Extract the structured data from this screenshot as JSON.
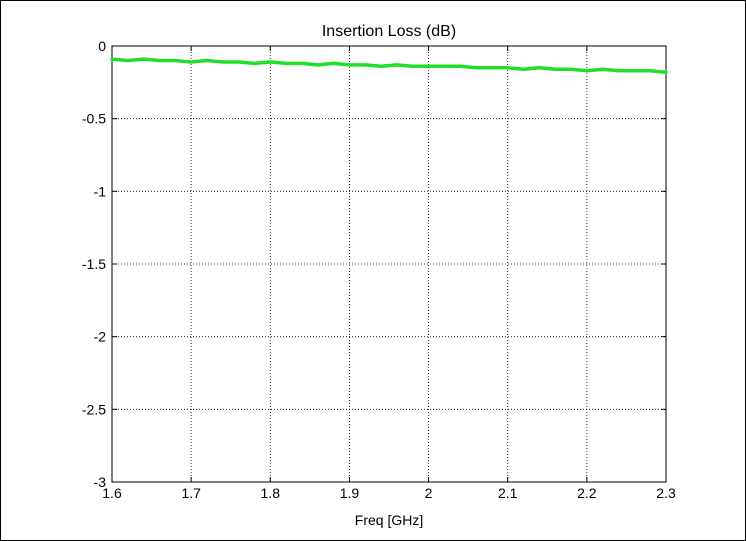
{
  "chart_data": {
    "type": "line",
    "title": "Insertion Loss (dB)",
    "xlabel": "Freq [GHz]",
    "ylabel": "",
    "xlim": [
      1.6,
      2.3
    ],
    "ylim": [
      -3,
      0
    ],
    "xticks": [
      "1.6",
      "1.7",
      "1.8",
      "1.9",
      "2",
      "2.1",
      "2.2",
      "2.3"
    ],
    "yticks": [
      "0",
      "-0.5",
      "-1",
      "-1.5",
      "-2",
      "-2.5",
      "-3"
    ],
    "grid": true,
    "series": [
      {
        "color": "#22e02a",
        "x": [
          1.6,
          1.62,
          1.64,
          1.66,
          1.68,
          1.7,
          1.72,
          1.74,
          1.76,
          1.78,
          1.8,
          1.82,
          1.84,
          1.86,
          1.88,
          1.9,
          1.92,
          1.94,
          1.96,
          1.98,
          2.0,
          2.02,
          2.04,
          2.06,
          2.08,
          2.1,
          2.12,
          2.14,
          2.16,
          2.18,
          2.2,
          2.22,
          2.24,
          2.26,
          2.28,
          2.3
        ],
        "y": [
          -0.09,
          -0.1,
          -0.09,
          -0.1,
          -0.1,
          -0.11,
          -0.1,
          -0.11,
          -0.11,
          -0.12,
          -0.11,
          -0.12,
          -0.12,
          -0.13,
          -0.12,
          -0.13,
          -0.13,
          -0.14,
          -0.13,
          -0.14,
          -0.14,
          -0.14,
          -0.14,
          -0.15,
          -0.15,
          -0.15,
          -0.16,
          -0.15,
          -0.16,
          -0.16,
          -0.17,
          -0.16,
          -0.17,
          -0.17,
          -0.17,
          -0.18
        ]
      }
    ]
  }
}
